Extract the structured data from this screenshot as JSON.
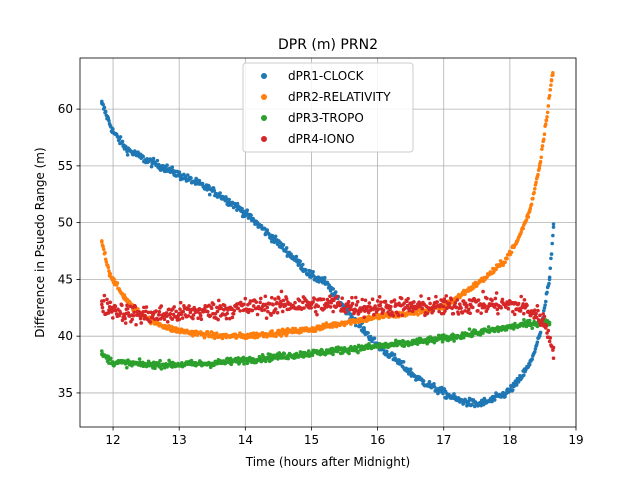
{
  "chart_data": {
    "type": "scatter",
    "title": "DPR (m) PRN2",
    "xlabel": "Time (hours after Midnight)",
    "ylabel": "Difference in Psuedo Range (m)",
    "xlim": [
      11.5,
      19.0
    ],
    "ylim": [
      32.0,
      64.5
    ],
    "xticks": [
      12,
      13,
      14,
      15,
      16,
      17,
      18,
      19
    ],
    "yticks": [
      35,
      40,
      45,
      50,
      55,
      60
    ],
    "grid": true,
    "legend_position": "upper center",
    "series": [
      {
        "name": "dPR1-CLOCK",
        "color": "#1f77b4",
        "noise": 0.35,
        "points": [
          [
            11.83,
            60.5
          ],
          [
            12.0,
            58.0
          ],
          [
            12.2,
            56.5
          ],
          [
            12.5,
            55.5
          ],
          [
            12.8,
            54.8
          ],
          [
            13.0,
            54.2
          ],
          [
            13.3,
            53.4
          ],
          [
            13.6,
            52.5
          ],
          [
            13.9,
            51.3
          ],
          [
            14.2,
            49.8
          ],
          [
            14.5,
            48.2
          ],
          [
            14.8,
            46.5
          ],
          [
            15.0,
            45.3
          ],
          [
            15.2,
            44.8
          ],
          [
            15.5,
            42.5
          ],
          [
            15.8,
            40.5
          ],
          [
            16.0,
            39.2
          ],
          [
            16.3,
            37.8
          ],
          [
            16.6,
            36.3
          ],
          [
            16.9,
            35.3
          ],
          [
            17.2,
            34.4
          ],
          [
            17.5,
            34.0
          ],
          [
            17.7,
            34.3
          ],
          [
            17.95,
            35.0
          ],
          [
            18.1,
            35.8
          ],
          [
            18.3,
            37.5
          ],
          [
            18.45,
            40.0
          ],
          [
            18.6,
            45.0
          ],
          [
            18.66,
            49.6
          ]
        ]
      },
      {
        "name": "dPR2-RELATIVITY",
        "color": "#ff7f0e",
        "noise": 0.25,
        "points": [
          [
            11.83,
            48.3
          ],
          [
            11.95,
            45.5
          ],
          [
            12.1,
            44.0
          ],
          [
            12.3,
            42.5
          ],
          [
            12.6,
            41.3
          ],
          [
            12.9,
            40.6
          ],
          [
            13.2,
            40.3
          ],
          [
            13.6,
            40.0
          ],
          [
            14.0,
            40.0
          ],
          [
            14.5,
            40.3
          ],
          [
            15.0,
            40.6
          ],
          [
            15.5,
            41.2
          ],
          [
            16.0,
            41.7
          ],
          [
            16.5,
            42.0
          ],
          [
            17.0,
            42.6
          ],
          [
            17.3,
            43.8
          ],
          [
            17.6,
            45.0
          ],
          [
            17.9,
            46.5
          ],
          [
            18.1,
            48.2
          ],
          [
            18.3,
            51.0
          ],
          [
            18.45,
            55.0
          ],
          [
            18.55,
            59.0
          ],
          [
            18.63,
            62.5
          ],
          [
            18.65,
            63.2
          ]
        ]
      },
      {
        "name": "dPR3-TROPO",
        "color": "#2ca02c",
        "noise": 0.3,
        "points": [
          [
            11.83,
            38.4
          ],
          [
            12.0,
            37.7
          ],
          [
            12.5,
            37.5
          ],
          [
            13.0,
            37.5
          ],
          [
            13.5,
            37.6
          ],
          [
            14.0,
            37.9
          ],
          [
            14.5,
            38.2
          ],
          [
            15.0,
            38.5
          ],
          [
            15.5,
            38.8
          ],
          [
            16.0,
            39.1
          ],
          [
            16.5,
            39.4
          ],
          [
            17.0,
            39.8
          ],
          [
            17.5,
            40.3
          ],
          [
            18.0,
            40.8
          ],
          [
            18.3,
            41.1
          ],
          [
            18.6,
            41.2
          ]
        ]
      },
      {
        "name": "dPR4-IONO",
        "color": "#d62728",
        "noise": 0.85,
        "points": [
          [
            11.83,
            42.8
          ],
          [
            12.2,
            42.0
          ],
          [
            12.6,
            41.8
          ],
          [
            13.0,
            42.0
          ],
          [
            13.4,
            42.2
          ],
          [
            13.8,
            42.4
          ],
          [
            14.2,
            42.6
          ],
          [
            14.6,
            42.8
          ],
          [
            15.0,
            42.8
          ],
          [
            15.4,
            42.8
          ],
          [
            15.8,
            42.6
          ],
          [
            16.2,
            42.6
          ],
          [
            16.6,
            42.6
          ],
          [
            17.0,
            42.6
          ],
          [
            17.4,
            42.8
          ],
          [
            17.8,
            42.8
          ],
          [
            18.2,
            42.6
          ],
          [
            18.5,
            41.5
          ],
          [
            18.66,
            39.0
          ]
        ]
      }
    ]
  }
}
